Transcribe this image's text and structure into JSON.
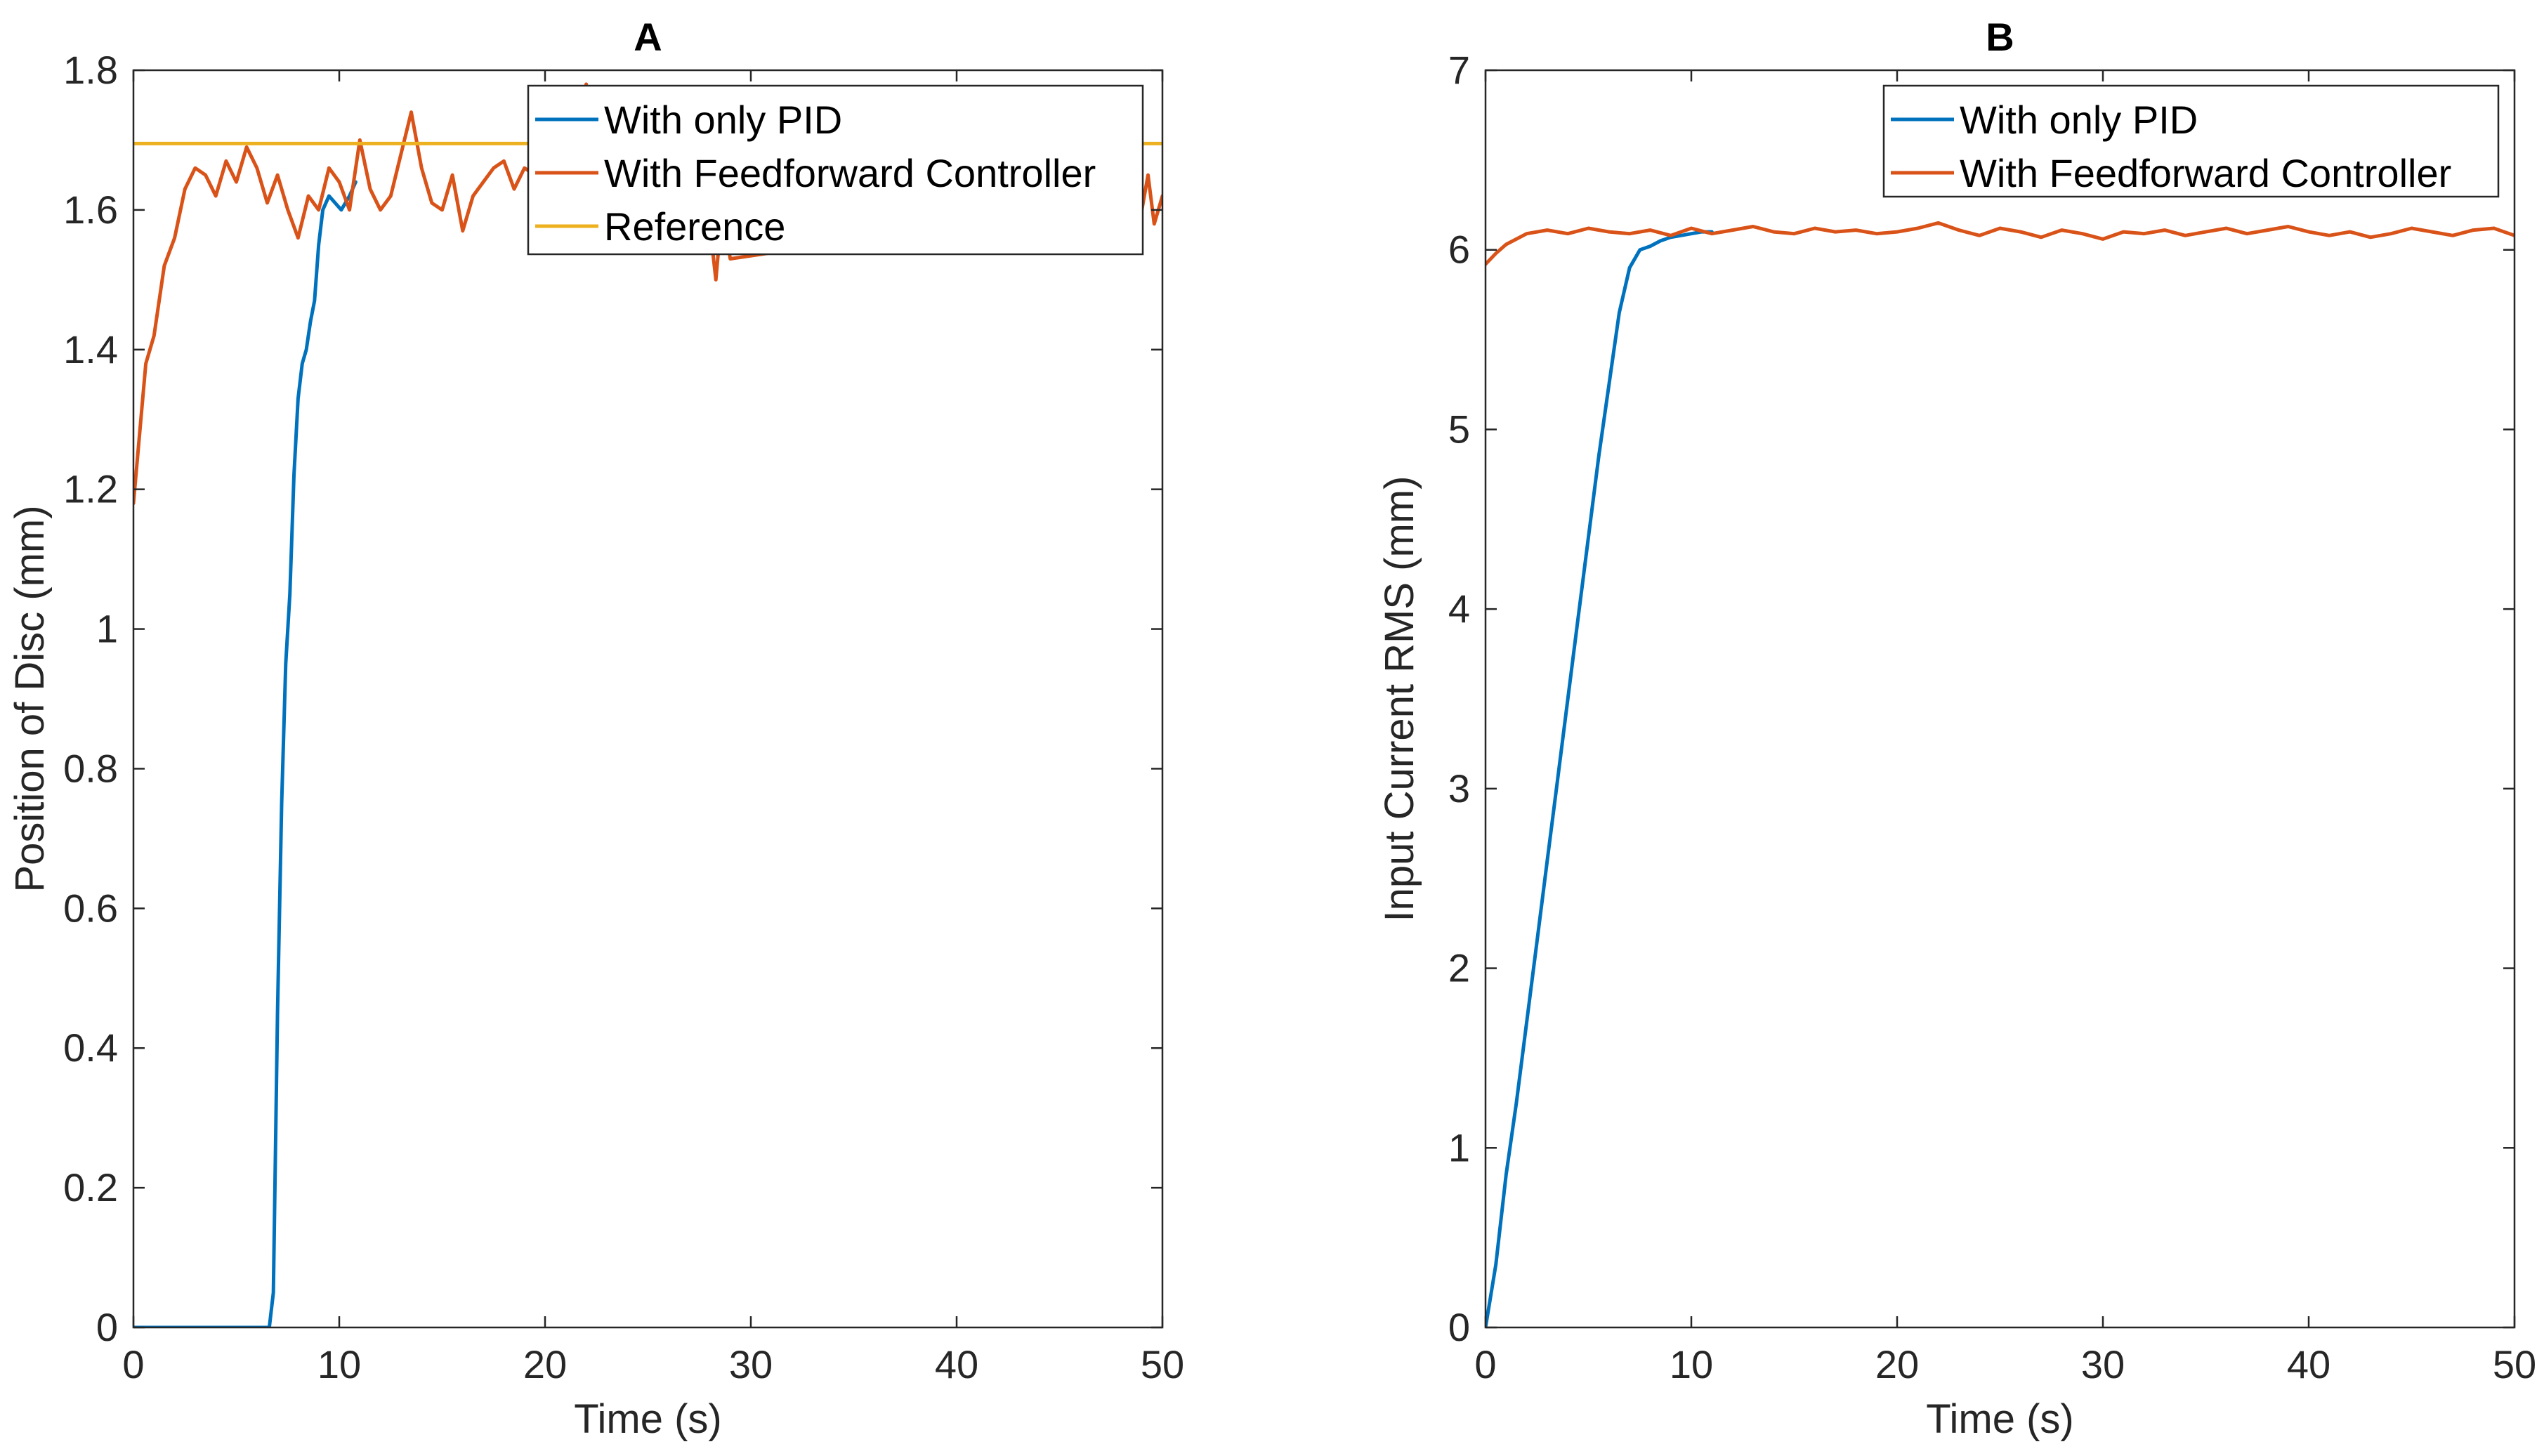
{
  "chart_data": [
    {
      "type": "line",
      "title": "A",
      "xlabel": "Time (s)",
      "ylabel": "Position of Disc (mm)",
      "xlim": [
        0,
        50
      ],
      "ylim": [
        0,
        1.8
      ],
      "xticks": [
        0,
        10,
        20,
        30,
        40,
        50
      ],
      "yticks": [
        0,
        0.2,
        0.4,
        0.6,
        0.8,
        1,
        1.2,
        1.4,
        1.6,
        1.8
      ],
      "ytick_labels": [
        "0",
        "0.2",
        "0.4",
        "0.6",
        "0.8",
        "1",
        "1.2",
        "1.4",
        "1.6",
        "1.8"
      ],
      "grid": false,
      "legend_position": "top-right",
      "series": [
        {
          "name": "With only PID",
          "color": "#0072BD",
          "x": [
            0,
            6.6,
            6.8,
            7.0,
            7.2,
            7.4,
            7.6,
            7.8,
            8.0,
            8.2,
            8.4,
            8.6,
            8.8,
            9.0,
            9.2,
            9.5,
            9.8,
            10.1,
            10.5,
            10.8
          ],
          "y": [
            0,
            0,
            0.05,
            0.45,
            0.75,
            0.95,
            1.05,
            1.22,
            1.33,
            1.38,
            1.4,
            1.44,
            1.47,
            1.55,
            1.6,
            1.62,
            1.61,
            1.6,
            1.62,
            1.64
          ]
        },
        {
          "name": "With Feedforward Controller",
          "color": "#D95319",
          "x": [
            0,
            0.3,
            0.6,
            1.0,
            1.5,
            2.0,
            2.5,
            3.0,
            3.5,
            4.0,
            4.5,
            5.0,
            5.5,
            6.0,
            6.5,
            7.0,
            7.5,
            8.0,
            8.5,
            9.0,
            9.5,
            10.0,
            10.5,
            11.0,
            11.5,
            12.0,
            12.5,
            13.0,
            13.5,
            14.0,
            14.5,
            15.0,
            15.5,
            16.0,
            16.5,
            17.0,
            17.5,
            18.0,
            18.5,
            19.0,
            20.0,
            21.0,
            21.5,
            22.0,
            22.5,
            23.0,
            24.0,
            28.0,
            28.3,
            28.6,
            29.0,
            40.5,
            41.0,
            49.0,
            49.3,
            49.6,
            50.0
          ],
          "y": [
            1.18,
            1.28,
            1.38,
            1.42,
            1.52,
            1.56,
            1.63,
            1.66,
            1.65,
            1.62,
            1.67,
            1.64,
            1.69,
            1.66,
            1.61,
            1.65,
            1.6,
            1.56,
            1.62,
            1.6,
            1.66,
            1.64,
            1.6,
            1.7,
            1.63,
            1.6,
            1.62,
            1.68,
            1.74,
            1.66,
            1.61,
            1.6,
            1.65,
            1.57,
            1.62,
            1.64,
            1.66,
            1.67,
            1.63,
            1.66,
            1.64,
            1.62,
            1.67,
            1.78,
            1.65,
            1.77,
            1.7,
            1.58,
            1.5,
            1.6,
            1.53,
            1.58,
            1.54,
            1.6,
            1.65,
            1.58,
            1.62
          ]
        },
        {
          "name": "Reference",
          "color": "#EDB120",
          "x": [
            0,
            50
          ],
          "y": [
            1.695,
            1.695
          ]
        }
      ]
    },
    {
      "type": "line",
      "title": "B",
      "xlabel": "Time (s)",
      "ylabel": "Input Current RMS (mm)",
      "xlim": [
        0,
        50
      ],
      "ylim": [
        0,
        7
      ],
      "xticks": [
        0,
        10,
        20,
        30,
        40,
        50
      ],
      "yticks": [
        0,
        1,
        2,
        3,
        4,
        5,
        6,
        7
      ],
      "ytick_labels": [
        "0",
        "1",
        "2",
        "3",
        "4",
        "5",
        "6",
        "7"
      ],
      "grid": false,
      "legend_position": "top-right",
      "series": [
        {
          "name": "With only PID",
          "color": "#0072BD",
          "x": [
            0,
            0.5,
            1,
            1.5,
            2,
            2.5,
            3,
            3.5,
            4,
            4.5,
            5,
            5.5,
            6,
            6.5,
            7,
            7.5,
            8,
            8.5,
            9,
            9.5,
            10,
            10.5,
            11
          ],
          "y": [
            0,
            0.35,
            0.85,
            1.25,
            1.7,
            2.15,
            2.6,
            3.05,
            3.5,
            3.95,
            4.4,
            4.85,
            5.25,
            5.65,
            5.9,
            6.0,
            6.02,
            6.05,
            6.07,
            6.08,
            6.09,
            6.1,
            6.1
          ]
        },
        {
          "name": "With Feedforward Controller",
          "color": "#D95319",
          "x": [
            0,
            0.5,
            1,
            1.5,
            2,
            3,
            4,
            5,
            6,
            7,
            8,
            9,
            10,
            11,
            12,
            13,
            14,
            15,
            16,
            17,
            18,
            19,
            20,
            21,
            22,
            23,
            24,
            25,
            26,
            27,
            28,
            29,
            30,
            31,
            32,
            33,
            34,
            35,
            36,
            37,
            38,
            39,
            40,
            41,
            42,
            43,
            44,
            45,
            46,
            47,
            48,
            49,
            50
          ],
          "y": [
            5.92,
            5.98,
            6.03,
            6.06,
            6.09,
            6.11,
            6.09,
            6.12,
            6.1,
            6.09,
            6.11,
            6.08,
            6.12,
            6.09,
            6.11,
            6.13,
            6.1,
            6.09,
            6.12,
            6.1,
            6.11,
            6.09,
            6.1,
            6.12,
            6.15,
            6.11,
            6.08,
            6.12,
            6.1,
            6.07,
            6.11,
            6.09,
            6.06,
            6.1,
            6.09,
            6.11,
            6.08,
            6.1,
            6.12,
            6.09,
            6.11,
            6.13,
            6.1,
            6.08,
            6.1,
            6.07,
            6.09,
            6.12,
            6.1,
            6.08,
            6.11,
            6.12,
            6.08
          ]
        }
      ]
    }
  ]
}
